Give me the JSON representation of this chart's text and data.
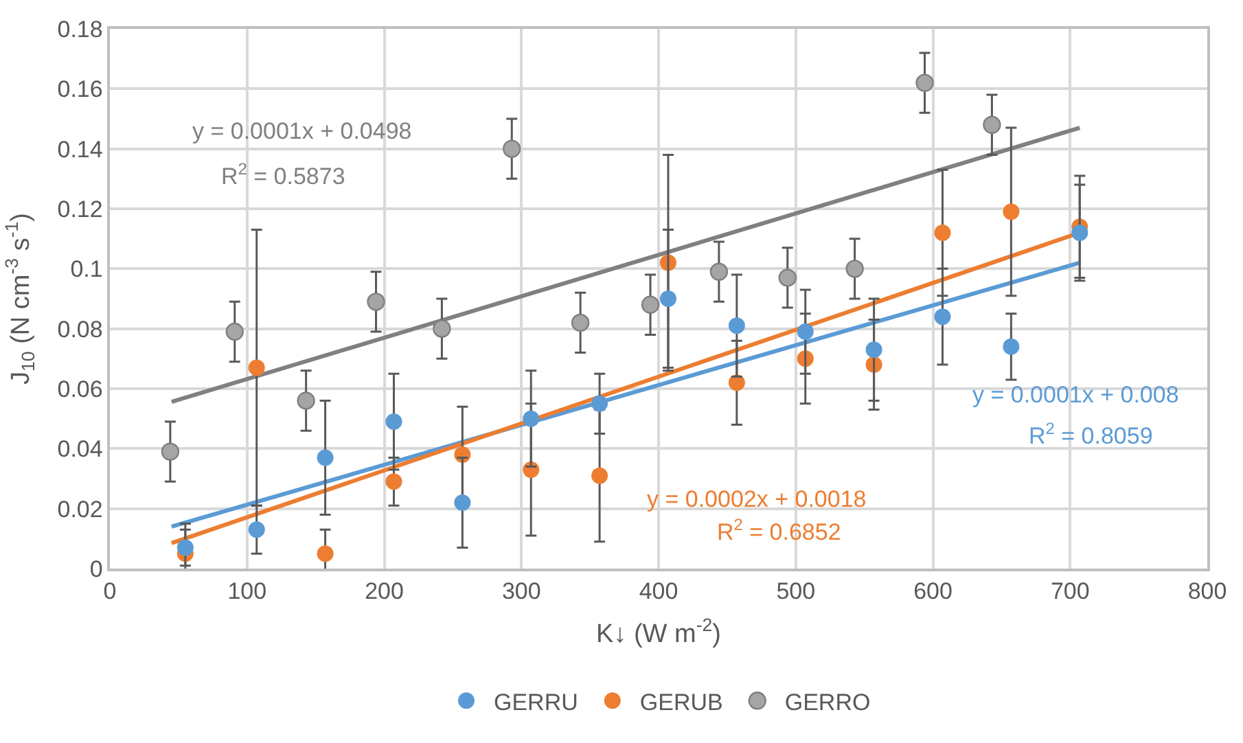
{
  "chart_data": {
    "type": "scatter",
    "xlabel": "K↓ (W m$^{-2}$)",
    "ylabel": "J$_{10}$ (N cm$^{-3}$ s$^{-1}$)",
    "xlim": [
      0,
      800
    ],
    "xticks": [
      0,
      100,
      200,
      300,
      400,
      500,
      600,
      700,
      800
    ],
    "ylim": [
      0,
      0.18
    ],
    "yticks": [
      0,
      0.02,
      0.04,
      0.06,
      0.08,
      0.1,
      0.12,
      0.14,
      0.16,
      0.18
    ],
    "grid": true,
    "legend": "bottom",
    "marker": "circle",
    "series": [
      {
        "name": "GERRU",
        "color": "#5b9bd5",
        "x": [
          55,
          107,
          157,
          207,
          257,
          307,
          357,
          407,
          457,
          507,
          557,
          607,
          657,
          707
        ],
        "values": [
          0.007,
          0.013,
          0.037,
          0.049,
          0.022,
          0.05,
          0.055,
          0.09,
          0.081,
          0.079,
          0.073,
          0.084,
          0.074,
          0.112
        ],
        "errors": [
          0.006,
          0.008,
          0.019,
          0.016,
          0.015,
          0.016,
          0.01,
          0.023,
          0.017,
          0.014,
          0.017,
          0.016,
          0.011,
          0.016
        ]
      },
      {
        "name": "GERUB",
        "color": "#ed7d31",
        "x": [
          55,
          107,
          157,
          207,
          257,
          307,
          357,
          407,
          457,
          507,
          557,
          607,
          657,
          707
        ],
        "values": [
          0.005,
          0.067,
          0.005,
          0.029,
          0.038,
          0.033,
          0.031,
          0.102,
          0.062,
          0.07,
          0.068,
          0.112,
          0.119,
          0.114
        ],
        "errors": [
          0.01,
          0.046,
          0.008,
          0.008,
          0.016,
          0.022,
          0.022,
          0.036,
          0.014,
          0.015,
          0.015,
          0.021,
          0.028,
          0.017
        ]
      },
      {
        "name": "GERRO",
        "color": "#a5a5a5",
        "x": [
          44,
          91,
          143,
          194,
          242,
          293,
          343,
          394,
          444,
          494,
          543,
          594,
          643
        ],
        "values": [
          0.039,
          0.079,
          0.056,
          0.089,
          0.08,
          0.14,
          0.082,
          0.088,
          0.099,
          0.097,
          0.1,
          0.162,
          0.148
        ],
        "errors": [
          0.01,
          0.01,
          0.01,
          0.01,
          0.01,
          0.01,
          0.01,
          0.01,
          0.01,
          0.01,
          0.01,
          0.01,
          0.01
        ]
      },
      {
        "type": "line",
        "marker": "none",
        "color": "#5b9bd5",
        "x": [
          45,
          707
        ],
        "values": [
          0.014,
          0.102
        ]
      },
      {
        "type": "line",
        "marker": "none",
        "color": "#ed7d31",
        "x": [
          45,
          707
        ],
        "values": [
          0.0085,
          0.112
        ]
      },
      {
        "type": "line",
        "marker": "none",
        "color": "#808080",
        "x": [
          45,
          707
        ],
        "values": [
          0.0556,
          0.147
        ]
      }
    ],
    "annotations": [
      "y = 0.0001x + 0.0498",
      "R$^{2}$ = 0.5873",
      "y = 0.0002x + 0.0018",
      "R$^{2}$ = 0.6852",
      "y = 0.0001x + 0.008",
      "R$^{2}$ = 0.8059"
    ]
  }
}
